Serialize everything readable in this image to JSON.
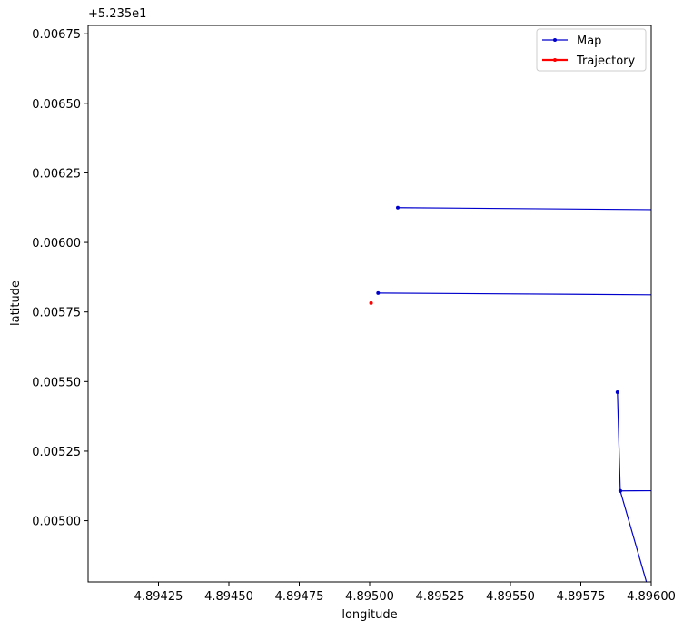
{
  "chart_data": {
    "type": "line",
    "offset_label": "+5.235e1",
    "xlabel": "longitude",
    "ylabel": "latitude",
    "xlim": [
      4.894,
      4.896
    ],
    "ylim": [
      0.00478,
      0.00678
    ],
    "x_ticks": [
      4.89425,
      4.8945,
      4.89475,
      4.895,
      4.89525,
      4.8955,
      4.89575,
      4.896
    ],
    "x_tick_labels": [
      "4.89425",
      "4.89450",
      "4.89475",
      "4.89500",
      "4.89525",
      "4.89550",
      "4.89575",
      "4.89600"
    ],
    "y_ticks": [
      0.005,
      0.00525,
      0.0055,
      0.00575,
      0.006,
      0.00625,
      0.0065,
      0.00675
    ],
    "y_tick_labels": [
      "0.00500",
      "0.00525",
      "0.00550",
      "0.00575",
      "0.00600",
      "0.00625",
      "0.00650",
      "0.00675"
    ],
    "grid": false,
    "legend_position": "top-right",
    "series": [
      {
        "name": "Map",
        "color": "#0000cc",
        "segments": [
          [
            {
              "x": 4.8951,
              "y": 0.006125
            },
            {
              "x": 4.897,
              "y": 0.00611
            }
          ],
          [
            {
              "x": 4.89503,
              "y": 0.005818
            },
            {
              "x": 4.897,
              "y": 0.005805
            }
          ],
          [
            {
              "x": 4.89588,
              "y": 0.005462
            },
            {
              "x": 4.89589,
              "y": 0.005107
            },
            {
              "x": 4.897,
              "y": 0.005117
            }
          ],
          [
            {
              "x": 4.89589,
              "y": 0.005107
            },
            {
              "x": 4.896,
              "y": 0.00472
            }
          ]
        ]
      },
      {
        "name": "Trajectory",
        "color": "#ff0000",
        "segments": [
          [
            {
              "x": 4.895005,
              "y": 0.005782
            }
          ]
        ]
      }
    ]
  }
}
